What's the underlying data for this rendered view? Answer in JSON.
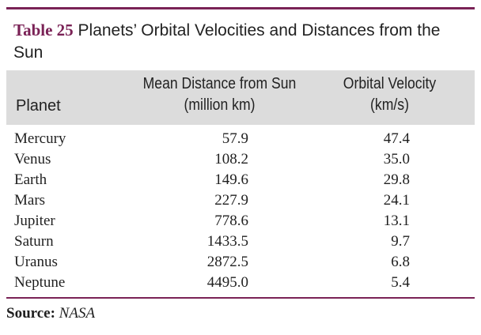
{
  "caption": {
    "number": "Table 25",
    "text": "Planets’ Orbital Velocities and Distances from the Sun"
  },
  "headers": {
    "planet": "Planet",
    "distance_line1": "Mean Distance from Sun",
    "distance_line2": "(million km)",
    "velocity_line1": "Orbital Velocity",
    "velocity_line2": "(km/s)"
  },
  "rows": [
    {
      "planet": "Mercury",
      "distance": "57.9",
      "velocity": "47.4"
    },
    {
      "planet": "Venus",
      "distance": "108.2",
      "velocity": "35.0"
    },
    {
      "planet": "Earth",
      "distance": "149.6",
      "velocity": "29.8"
    },
    {
      "planet": "Mars",
      "distance": "227.9",
      "velocity": "24.1"
    },
    {
      "planet": "Jupiter",
      "distance": "778.6",
      "velocity": "13.1"
    },
    {
      "planet": "Saturn",
      "distance": "1433.5",
      "velocity": "9.7"
    },
    {
      "planet": "Uranus",
      "distance": "2872.5",
      "velocity": "6.8"
    },
    {
      "planet": "Neptune",
      "distance": "4495.0",
      "velocity": "5.4"
    }
  ],
  "source": {
    "label": "Source:",
    "value": "NASA"
  },
  "colors": {
    "accent": "#7a2256",
    "header_band": "#dcdcdc"
  }
}
